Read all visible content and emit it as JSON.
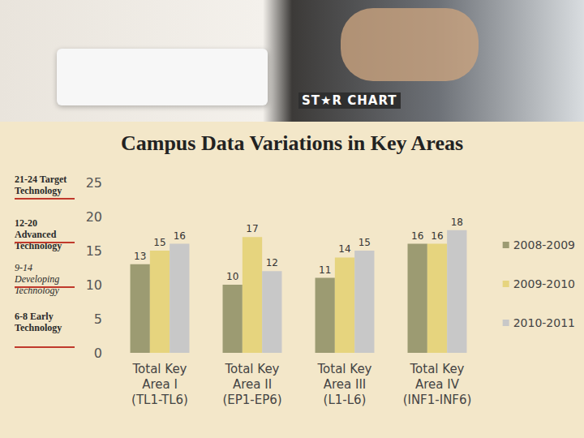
{
  "chart_data": {
    "type": "bar",
    "title": "Campus Data Variations in Key Areas",
    "categories": [
      "Total Key Area I (TL1-TL6)",
      "Total Key Area II (EP1-EP6)",
      "Total Key Area III (L1-L6)",
      "Total Key Area IV (INF1-INF6)"
    ],
    "series": [
      {
        "name": "2008-2009",
        "color": "#9c9b72",
        "values": [
          13,
          10,
          11,
          16
        ]
      },
      {
        "name": "2009-2010",
        "color": "#e6d47e",
        "values": [
          15,
          17,
          14,
          16
        ]
      },
      {
        "name": "2010-2011",
        "color": "#c8c8c8",
        "values": [
          16,
          12,
          15,
          18
        ]
      }
    ],
    "ylim": [
      0,
      25
    ],
    "yticks": [
      0,
      5,
      10,
      15,
      20,
      25
    ],
    "grid": false,
    "legend": "right",
    "data_labels": true,
    "annotations": [
      "21-24 Target Technology",
      "12-20 Advanced Technology",
      "9-14 Developing Technology",
      "6-8 Early Technology"
    ]
  },
  "header": {
    "logo": "ST★R CHART"
  }
}
